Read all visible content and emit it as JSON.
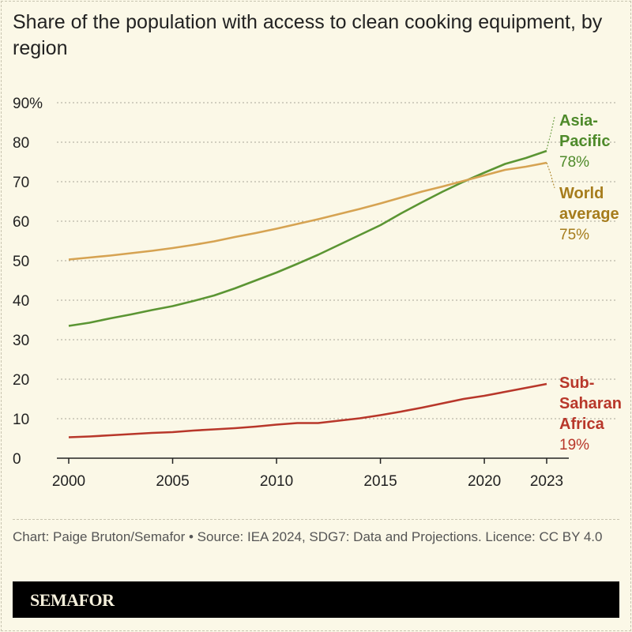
{
  "title": "Share of the population with access to clean cooking equipment, by region",
  "footer": {
    "note": "Chart: Paige Bruton/Semafor • Source: IEA 2024, SDG7: Data and Projections. Licence: CC BY 4.0",
    "brand": "SEMAFOR"
  },
  "chart_data": {
    "type": "line",
    "title": "Share of the population with access to clean cooking equipment, by region",
    "xlabel": "",
    "ylabel": "",
    "ylim": [
      0,
      90
    ],
    "xlim": [
      2000,
      2023
    ],
    "grid": true,
    "y_ticks": [
      "0",
      "10",
      "20",
      "30",
      "40",
      "50",
      "60",
      "70",
      "80",
      "90%"
    ],
    "x_ticks": [
      "2000",
      "2005",
      "2010",
      "2015",
      "2020",
      "2023"
    ],
    "x": [
      2000,
      2001,
      2002,
      2003,
      2004,
      2005,
      2006,
      2007,
      2008,
      2009,
      2010,
      2011,
      2012,
      2013,
      2014,
      2015,
      2016,
      2017,
      2018,
      2019,
      2020,
      2021,
      2022,
      2023
    ],
    "series": [
      {
        "name": "Asia-Pacific",
        "end_label": "78%",
        "color": "#5b9533",
        "label_color": "#4e8a2a",
        "values": [
          33.5,
          34.3,
          35.4,
          36.4,
          37.5,
          38.5,
          39.8,
          41.2,
          43,
          45,
          47,
          49.2,
          51.5,
          54,
          56.5,
          59,
          62,
          64.8,
          67.5,
          70,
          72.3,
          74.5,
          76,
          77.8
        ]
      },
      {
        "name": "World average",
        "end_label": "75%",
        "color": "#d6a352",
        "label_color": "#a67c1c",
        "values": [
          50.3,
          50.8,
          51.3,
          51.9,
          52.5,
          53.2,
          54,
          54.9,
          56,
          57,
          58.1,
          59.3,
          60.5,
          61.8,
          63.1,
          64.5,
          66,
          67.5,
          68.8,
          70.2,
          71.6,
          73,
          73.8,
          74.8
        ]
      },
      {
        "name": "Sub-Saharan Africa",
        "end_label": "19%",
        "color": "#b8372a",
        "label_color": "#b8372a",
        "values": [
          5.3,
          5.5,
          5.8,
          6.1,
          6.4,
          6.6,
          7,
          7.3,
          7.6,
          8,
          8.5,
          8.9,
          8.9,
          9.5,
          10.1,
          10.9,
          11.8,
          12.8,
          13.9,
          15,
          15.8,
          16.8,
          17.8,
          18.8
        ]
      }
    ]
  },
  "labels": {
    "asia": [
      "Asia-",
      "Pacific",
      "78%"
    ],
    "world": [
      "World",
      "average",
      "75%"
    ],
    "ssa": [
      "Sub-",
      "Saharan",
      "Africa",
      "19%"
    ]
  }
}
